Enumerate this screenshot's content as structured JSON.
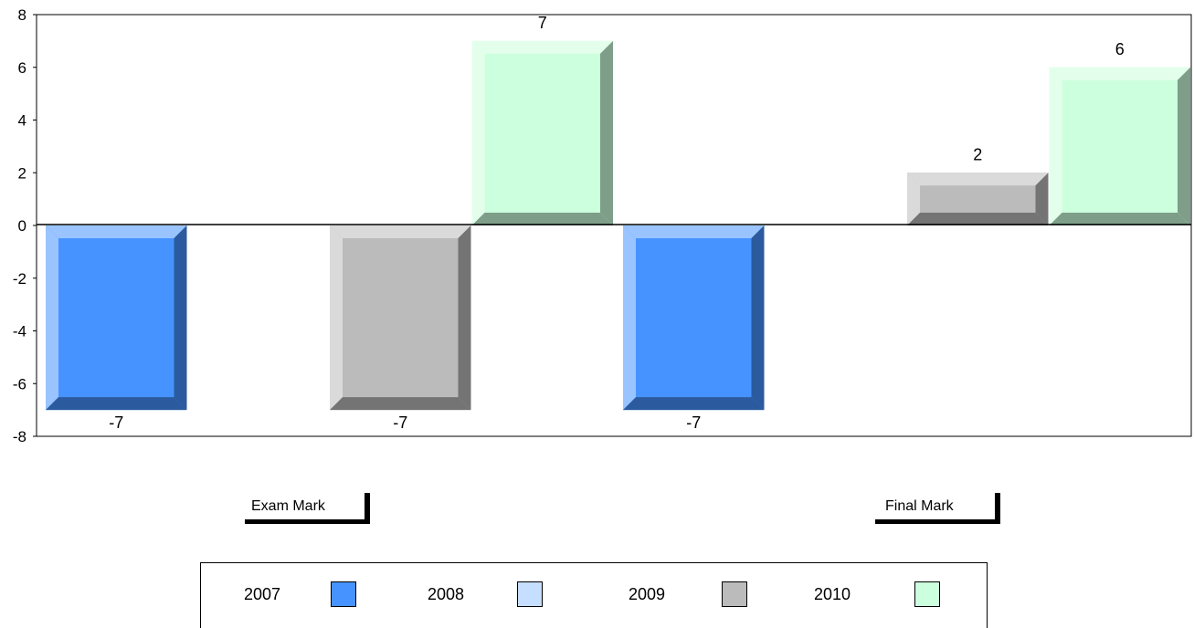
{
  "chart_data": {
    "type": "bar",
    "categories": [
      "Exam Mark",
      "Final Mark"
    ],
    "series": [
      {
        "name": "2007",
        "color": "#4693FF",
        "values": [
          -7,
          -7
        ]
      },
      {
        "name": "2008",
        "color": "#C6DEFF",
        "values": [
          null,
          null
        ]
      },
      {
        "name": "2009",
        "color": "#BBBBBB",
        "values": [
          -7,
          2
        ]
      },
      {
        "name": "2010",
        "color": "#CCFFDD",
        "values": [
          7,
          6
        ]
      }
    ],
    "ylim": [
      -8,
      8
    ],
    "yticks": [
      "8",
      "6",
      "4",
      "2",
      "0",
      "-2",
      "-4",
      "-6",
      "-8"
    ],
    "data_labels": [
      [
        "-7",
        "-7"
      ],
      [
        "",
        ""
      ],
      [
        "-7",
        "2"
      ],
      [
        "7",
        "6"
      ]
    ],
    "legend_position": "bottom",
    "grid": false
  },
  "legend": {
    "items": [
      {
        "label": "2007",
        "color": "#4693FF"
      },
      {
        "label": "2008",
        "color": "#C6DEFF"
      },
      {
        "label": "2009",
        "color": "#BBBBBB"
      },
      {
        "label": "2010",
        "color": "#CCFFDD"
      }
    ]
  }
}
